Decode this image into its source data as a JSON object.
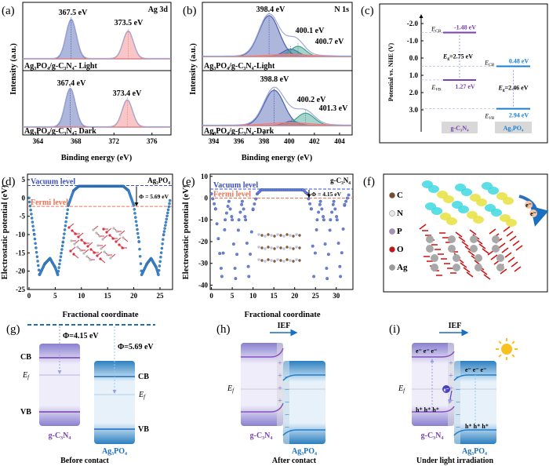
{
  "panels": {
    "a": {
      "label": "(a)",
      "title": "Ag 3d",
      "xlabel": "Binding energy (eV)",
      "ylabel": "Intensity (a.u.)",
      "ticks": [
        "364",
        "368",
        "372",
        "376"
      ],
      "top": {
        "sample": "Ag₃PO₄/g-C₃N₄- Light",
        "peak1": "367.5 eV",
        "peak2": "373.5 eV"
      },
      "bottom": {
        "sample": "Ag₃PO₄/g-C₃N₄- Dark",
        "peak1": "367.4 eV",
        "peak2": "373.4 eV"
      }
    },
    "b": {
      "label": "(b)",
      "title": "N 1s",
      "xlabel": "Binding energy (eV)",
      "ylabel": "Intensity (a.u.)",
      "ticks": [
        "394",
        "396",
        "398",
        "400",
        "402",
        "404"
      ],
      "top": {
        "sample": "Ag₃PO₄/g-C₃N₄-Light",
        "peak1": "398.4 eV",
        "peak2": "400.1 eV",
        "peak3": "400.7 eV"
      },
      "bottom": {
        "sample": "Ag₃PO₄/g-C₃N₄-Dark",
        "peak1": "398.8 eV",
        "peak2": "400.2 eV",
        "peak3": "401.3 eV"
      }
    },
    "c": {
      "label": "(c)",
      "ylabel": "Potential vs. NHE (V)",
      "ticks": [
        "-2.0",
        "-1.0",
        "0.0",
        "1.0",
        "2.0",
        "3.0"
      ],
      "e": "E",
      "cb": "CB",
      "vb": "VB",
      "g": "g",
      "gcn": {
        "name": "g-C₃N₄",
        "cb": "-1.48 eV",
        "vb": "1.27 eV",
        "eg": "=2.75 eV"
      },
      "apo": {
        "name": "Ag₃PO₄",
        "cb": "0.48 eV",
        "vb": "2.94 eV",
        "eg": "=2.46 eV"
      }
    },
    "d": {
      "label": "(d)",
      "title": "Ag₃PO₄",
      "xlabel": "Fractional coordinate",
      "ylabel": "Electrostatic potential (eV)",
      "vacuum": "Vacuum level",
      "fermi": "Fermi level",
      "phi": "Φ = 5.69 eV",
      "xticks": [
        "0",
        "5",
        "10",
        "15",
        "20",
        "25"
      ],
      "yticks": [
        "5",
        "0",
        "-5",
        "-10",
        "-15",
        "-20",
        "-25"
      ]
    },
    "e": {
      "label": "(e)",
      "title": "g-C₃N₄",
      "xlabel": "Fractional coordinate",
      "ylabel": "Electrostatic potential (eV)",
      "vacuum": "Vacuum level",
      "fermi": "Fermi level",
      "phi": "Φ = 4.15 eV",
      "xticks": [
        "0",
        "5",
        "10",
        "15",
        "20",
        "25",
        "30"
      ],
      "yticks": [
        "10",
        "0",
        "-10",
        "-20",
        "-30",
        "-40"
      ]
    },
    "f": {
      "label": "(f)",
      "legend": [
        "C",
        "N",
        "P",
        "O",
        "Ag"
      ],
      "legend_colors": [
        "#7a4a2a",
        "#e8e8e8",
        "#a890b8",
        "#d01010",
        "#9a9a9a"
      ],
      "electron": "e⁻"
    },
    "g": {
      "label": "(g)",
      "phi1": "Φ=4.15 eV",
      "phi2": "Φ=5.69 eV",
      "cb": "CB",
      "vb": "VB",
      "ef": "E",
      "ef_sub": "f",
      "gcn": "g-C₃N₄",
      "apo": "Ag₃PO₄",
      "caption": "Before contact"
    },
    "h": {
      "label": "(h)",
      "ief": "IEF",
      "ef": "E",
      "ef_sub": "f",
      "gcn": "g-C₃N₄",
      "apo": "Ag₃PO₄",
      "caption": "After contact",
      "plus": "+",
      "minus": "−"
    },
    "i": {
      "label": "(i)",
      "ief": "IEF",
      "ef": "E",
      "ef_sub": "f",
      "gcn": "g-C₃N₄",
      "apo": "Ag₃PO₄",
      "caption": "Under light irradiation",
      "electrons": "e⁻  e⁻  e⁻",
      "holes": "h⁺ h⁺ h⁺",
      "e": "e⁻",
      "plus": "+",
      "minus": "−",
      "sun_icon": "sun-icon"
    }
  },
  "colors": {
    "blue_peak": "#4a5fb0",
    "red_peak": "#f08080",
    "teal_peak": "#3aa090",
    "purple": "#7a3fb0",
    "blue": "#1a7fd0",
    "vacuum": "#3a4fc0",
    "fermi": "#f07050",
    "dots_d": "#3a8ad0",
    "dots_e": "#6f7fd8"
  },
  "chart_data": [
    {
      "panel": "a",
      "type": "line",
      "title": "Ag 3d",
      "xlabel": "Binding energy (eV)",
      "ylabel": "Intensity (a.u.)",
      "xlim": [
        362.4,
        378
      ],
      "series": [
        {
          "name": "Ag₃PO₄/g-C₃N₄- Light",
          "peaks": [
            {
              "center": 367.5,
              "height": 1.0,
              "sigma": 0.55,
              "color": "blue"
            },
            {
              "center": 373.5,
              "height": 0.7,
              "sigma": 0.55,
              "color": "red"
            }
          ]
        },
        {
          "name": "Ag₃PO₄/g-C₃N₄- Dark",
          "peaks": [
            {
              "center": 367.4,
              "height": 1.0,
              "sigma": 0.55,
              "color": "blue"
            },
            {
              "center": 373.4,
              "height": 0.7,
              "sigma": 0.55,
              "color": "red"
            }
          ]
        }
      ]
    },
    {
      "panel": "b",
      "type": "line",
      "title": "N 1s",
      "xlabel": "Binding energy (eV)",
      "ylabel": "Intensity (a.u.)",
      "xlim": [
        393.1,
        405
      ],
      "series": [
        {
          "name": "Ag₃PO₄/g-C₃N₄-Light",
          "peaks": [
            {
              "center": 398.4,
              "height": 1.0,
              "sigma": 0.8,
              "color": "blue"
            },
            {
              "center": 400.1,
              "height": 0.18,
              "sigma": 0.6,
              "color": "blue"
            },
            {
              "center": 400.7,
              "height": 0.25,
              "sigma": 0.6,
              "color": "teal"
            },
            {
              "center": 400.0,
              "height": 0.05,
              "sigma": 1.8,
              "color": "red"
            }
          ]
        },
        {
          "name": "Ag₃PO₄/g-C₃N₄-Dark",
          "peaks": [
            {
              "center": 398.8,
              "height": 1.0,
              "sigma": 0.8,
              "color": "blue"
            },
            {
              "center": 400.2,
              "height": 0.12,
              "sigma": 0.6,
              "color": "blue"
            },
            {
              "center": 401.3,
              "height": 0.35,
              "sigma": 0.7,
              "color": "teal"
            },
            {
              "center": 400.0,
              "height": 0.08,
              "sigma": 1.8,
              "color": "red"
            }
          ]
        }
      ]
    },
    {
      "panel": "c",
      "type": "bar",
      "ylabel": "Potential vs. NHE (V)",
      "ylim": [
        -2.5,
        4.0
      ],
      "categories": [
        "g-C₃N₄",
        "Ag₃PO₄"
      ],
      "ECB": [
        -1.48,
        0.48
      ],
      "EVB": [
        1.27,
        2.94
      ],
      "Eg": [
        2.75,
        2.46
      ]
    },
    {
      "panel": "d",
      "type": "scatter",
      "title": "Ag₃PO₄",
      "xlabel": "Fractional coordinate",
      "ylabel": "Electrostatic potential (eV)",
      "xlim": [
        -0.3,
        27.4
      ],
      "ylim": [
        -25,
        6.5
      ],
      "vacuum_level": 3.4,
      "fermi_level": -2.3,
      "work_function": 5.69,
      "profile": [
        [
          0,
          0
        ],
        [
          1,
          -10
        ],
        [
          2,
          -21
        ],
        [
          3,
          -18
        ],
        [
          4,
          -16.5
        ],
        [
          5,
          -19
        ],
        [
          5.5,
          -21
        ],
        [
          6.5,
          -12
        ],
        [
          7.5,
          -2
        ],
        [
          8.5,
          2
        ],
        [
          9.5,
          3.2
        ],
        [
          18,
          3.2
        ],
        [
          19,
          2
        ],
        [
          20,
          -2
        ],
        [
          21,
          -12
        ],
        [
          21.5,
          -21
        ],
        [
          22.5,
          -18
        ],
        [
          23.3,
          -16.5
        ],
        [
          24.3,
          -19
        ],
        [
          24.7,
          -21
        ],
        [
          25.7,
          -10
        ],
        [
          27,
          0
        ]
      ]
    },
    {
      "panel": "e",
      "type": "scatter",
      "title": "g-C₃N₄",
      "xlabel": "Fractional coordinate",
      "ylabel": "Electrostatic potential (eV)",
      "xlim": [
        -0.3,
        34
      ],
      "ylim": [
        -42,
        11
      ],
      "vacuum_level": 4.15,
      "fermi_level": 0,
      "work_function": 4.15,
      "profile": [
        [
          0,
          2
        ],
        [
          1,
          -5
        ],
        [
          2.5,
          -36
        ],
        [
          3.3,
          -10
        ],
        [
          4.2,
          -1.5
        ],
        [
          5,
          -10
        ],
        [
          5.8,
          -37
        ],
        [
          6.6,
          -10
        ],
        [
          7.4,
          -1.5
        ],
        [
          8.2,
          -10
        ],
        [
          9,
          -36
        ],
        [
          10,
          -5
        ],
        [
          11,
          2
        ],
        [
          12,
          3.8
        ],
        [
          22,
          3.8
        ],
        [
          23,
          2
        ],
        [
          24,
          -5
        ],
        [
          24.6,
          -36
        ],
        [
          25.4,
          -10
        ],
        [
          26.2,
          -1.5
        ],
        [
          27,
          -10
        ],
        [
          27.8,
          -37
        ],
        [
          28.6,
          -10
        ],
        [
          29.4,
          -1.5
        ],
        [
          30.2,
          -10
        ],
        [
          31,
          -36
        ],
        [
          32,
          -3
        ],
        [
          33,
          1.5
        ]
      ]
    }
  ]
}
